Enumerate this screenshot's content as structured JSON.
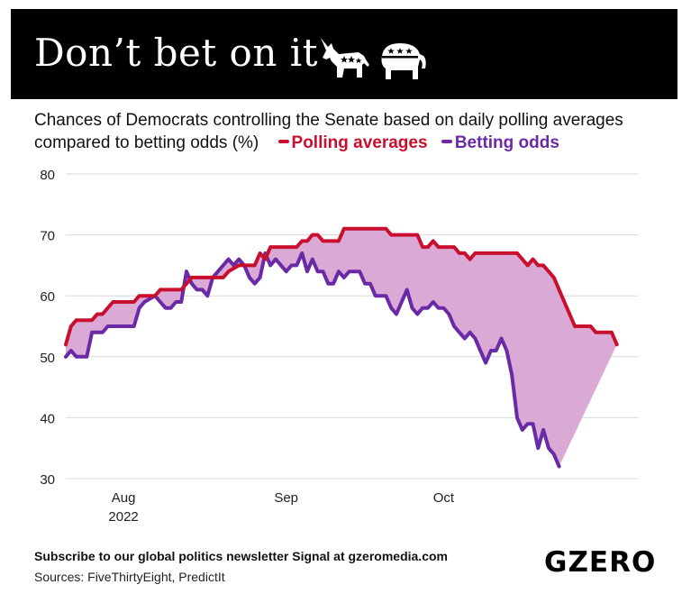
{
  "header": {
    "title": "Don’t bet on it"
  },
  "subtitle": "Chances of Democrats controlling the Senate based on daily polling averages compared to betting odds (%)",
  "colors": {
    "polling": "#c8102e",
    "betting": "#6a2aa5",
    "fill": "#dba9d5",
    "grid": "#d9d9d9",
    "banner": "#000000"
  },
  "icons": [
    "donkey-icon",
    "elephant-icon"
  ],
  "footer": {
    "cta": "Subscribe to our global politics newsletter Signal at gzeromedia.com",
    "sources": "Sources: FiveThirtyEight, PredictIt",
    "logo": "GZERO"
  },
  "chart_data": {
    "type": "line",
    "ylim": [
      30,
      80
    ],
    "yticks": [
      30,
      40,
      50,
      60,
      70,
      80
    ],
    "grid": true,
    "legend_placement": "top-left, inline with subtitle",
    "x_start": "2022-07-21",
    "x_end": "2022-11-07",
    "x_ticks": [
      {
        "date": "2022-08-01",
        "label": "Aug",
        "sublabel": "2022"
      },
      {
        "date": "2022-09-01",
        "label": "Sep",
        "sublabel": ""
      },
      {
        "date": "2022-10-01",
        "label": "Oct",
        "sublabel": ""
      }
    ],
    "shaded_between_series": true,
    "series": [
      {
        "name": "Polling averages",
        "points": [
          [
            "2022-07-21",
            52
          ],
          [
            "2022-07-22",
            55
          ],
          [
            "2022-07-23",
            56
          ],
          [
            "2022-07-25",
            56
          ],
          [
            "2022-07-26",
            56
          ],
          [
            "2022-07-27",
            57
          ],
          [
            "2022-07-28",
            57
          ],
          [
            "2022-07-29",
            58
          ],
          [
            "2022-07-30",
            59
          ],
          [
            "2022-08-03",
            59
          ],
          [
            "2022-08-04",
            60
          ],
          [
            "2022-08-07",
            60
          ],
          [
            "2022-08-08",
            61
          ],
          [
            "2022-08-12",
            61
          ],
          [
            "2022-08-13",
            62
          ],
          [
            "2022-08-14",
            63
          ],
          [
            "2022-08-20",
            63
          ],
          [
            "2022-08-21",
            64
          ],
          [
            "2022-08-23",
            65
          ],
          [
            "2022-08-26",
            65
          ],
          [
            "2022-08-27",
            67
          ],
          [
            "2022-08-28",
            66
          ],
          [
            "2022-08-29",
            68
          ],
          [
            "2022-09-03",
            68
          ],
          [
            "2022-09-04",
            69
          ],
          [
            "2022-09-05",
            69
          ],
          [
            "2022-09-06",
            70
          ],
          [
            "2022-09-07",
            70
          ],
          [
            "2022-09-08",
            69
          ],
          [
            "2022-09-11",
            69
          ],
          [
            "2022-09-12",
            71
          ],
          [
            "2022-09-20",
            71
          ],
          [
            "2022-09-21",
            70
          ],
          [
            "2022-09-26",
            70
          ],
          [
            "2022-09-27",
            68
          ],
          [
            "2022-09-28",
            68
          ],
          [
            "2022-09-29",
            69
          ],
          [
            "2022-09-30",
            68
          ],
          [
            "2022-10-03",
            68
          ],
          [
            "2022-10-04",
            67
          ],
          [
            "2022-10-05",
            67
          ],
          [
            "2022-10-06",
            66
          ],
          [
            "2022-10-07",
            67
          ],
          [
            "2022-10-15",
            67
          ],
          [
            "2022-10-17",
            65
          ],
          [
            "2022-10-18",
            66
          ],
          [
            "2022-10-19",
            65
          ],
          [
            "2022-10-20",
            65
          ],
          [
            "2022-10-21",
            64
          ],
          [
            "2022-10-22",
            63
          ],
          [
            "2022-10-24",
            59
          ],
          [
            "2022-10-26",
            55
          ],
          [
            "2022-10-29",
            55
          ],
          [
            "2022-10-30",
            54
          ],
          [
            "2022-11-02",
            54
          ],
          [
            "2022-11-03",
            52
          ]
        ]
      },
      {
        "name": "Betting odds",
        "points": [
          [
            "2022-07-21",
            50
          ],
          [
            "2022-07-22",
            51
          ],
          [
            "2022-07-23",
            50
          ],
          [
            "2022-07-25",
            50
          ],
          [
            "2022-07-26",
            54
          ],
          [
            "2022-07-28",
            54
          ],
          [
            "2022-07-29",
            55
          ],
          [
            "2022-08-03",
            55
          ],
          [
            "2022-08-04",
            58
          ],
          [
            "2022-08-05",
            59
          ],
          [
            "2022-08-07",
            60
          ],
          [
            "2022-08-08",
            59
          ],
          [
            "2022-08-09",
            58
          ],
          [
            "2022-08-10",
            58
          ],
          [
            "2022-08-11",
            59
          ],
          [
            "2022-08-12",
            59
          ],
          [
            "2022-08-13",
            64
          ],
          [
            "2022-08-14",
            62
          ],
          [
            "2022-08-15",
            61
          ],
          [
            "2022-08-16",
            61
          ],
          [
            "2022-08-17",
            60
          ],
          [
            "2022-08-18",
            63
          ],
          [
            "2022-08-19",
            64
          ],
          [
            "2022-08-21",
            66
          ],
          [
            "2022-08-22",
            65
          ],
          [
            "2022-08-23",
            66
          ],
          [
            "2022-08-24",
            65
          ],
          [
            "2022-08-25",
            63
          ],
          [
            "2022-08-26",
            62
          ],
          [
            "2022-08-27",
            63
          ],
          [
            "2022-08-28",
            67
          ],
          [
            "2022-08-29",
            65
          ],
          [
            "2022-08-30",
            66
          ],
          [
            "2022-09-01",
            64
          ],
          [
            "2022-09-02",
            65
          ],
          [
            "2022-09-03",
            65
          ],
          [
            "2022-09-04",
            67
          ],
          [
            "2022-09-05",
            64
          ],
          [
            "2022-09-06",
            66
          ],
          [
            "2022-09-07",
            64
          ],
          [
            "2022-09-08",
            64
          ],
          [
            "2022-09-09",
            62
          ],
          [
            "2022-09-10",
            62
          ],
          [
            "2022-09-11",
            64
          ],
          [
            "2022-09-12",
            63
          ],
          [
            "2022-09-13",
            64
          ],
          [
            "2022-09-15",
            64
          ],
          [
            "2022-09-16",
            62
          ],
          [
            "2022-09-17",
            62
          ],
          [
            "2022-09-18",
            60
          ],
          [
            "2022-09-20",
            60
          ],
          [
            "2022-09-21",
            58
          ],
          [
            "2022-09-22",
            57
          ],
          [
            "2022-09-23",
            59
          ],
          [
            "2022-09-24",
            61
          ],
          [
            "2022-09-25",
            58
          ],
          [
            "2022-09-26",
            57
          ],
          [
            "2022-09-27",
            58
          ],
          [
            "2022-09-28",
            58
          ],
          [
            "2022-09-29",
            59
          ],
          [
            "2022-09-30",
            58
          ],
          [
            "2022-10-01",
            58
          ],
          [
            "2022-10-02",
            57
          ],
          [
            "2022-10-03",
            55
          ],
          [
            "2022-10-04",
            54
          ],
          [
            "2022-10-05",
            53
          ],
          [
            "2022-10-06",
            54
          ],
          [
            "2022-10-07",
            53
          ],
          [
            "2022-10-08",
            51
          ],
          [
            "2022-10-09",
            49
          ],
          [
            "2022-10-10",
            51
          ],
          [
            "2022-10-11",
            51
          ],
          [
            "2022-10-12",
            53
          ],
          [
            "2022-10-13",
            51
          ],
          [
            "2022-10-14",
            47
          ],
          [
            "2022-10-15",
            40
          ],
          [
            "2022-10-16",
            38
          ],
          [
            "2022-10-17",
            39
          ],
          [
            "2022-10-18",
            39
          ],
          [
            "2022-10-19",
            35
          ],
          [
            "2022-10-20",
            38
          ],
          [
            "2022-10-21",
            35
          ],
          [
            "2022-10-22",
            34
          ],
          [
            "2022-10-23",
            32
          ]
        ]
      }
    ]
  }
}
